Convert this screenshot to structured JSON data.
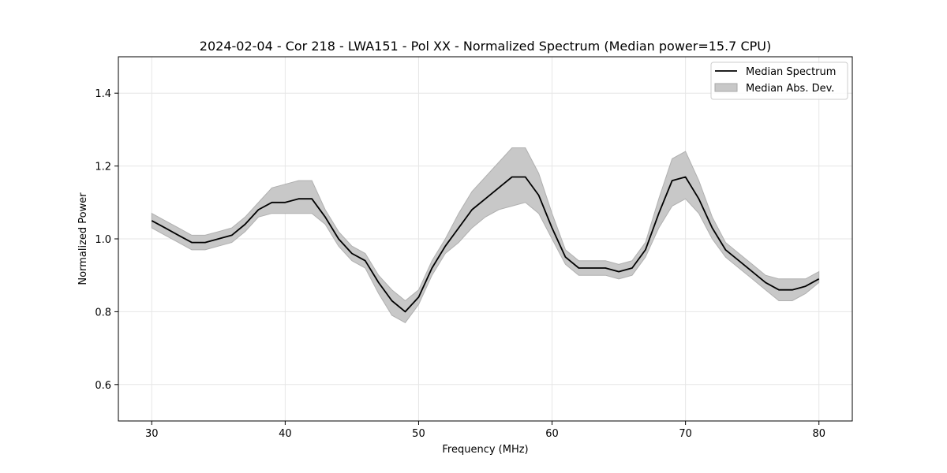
{
  "chart_data": {
    "type": "line",
    "title": "2024-02-04 - Cor 218 - LWA151 - Pol XX - Normalized Spectrum (Median power=15.7 CPU)",
    "xlabel": "Frequency (MHz)",
    "ylabel": "Normalized Power",
    "xlim": [
      27.5,
      82.5
    ],
    "ylim": [
      0.5,
      1.5
    ],
    "xticks": [
      30,
      40,
      50,
      60,
      70,
      80
    ],
    "yticks": [
      0.6,
      0.8,
      1.0,
      1.2,
      1.4
    ],
    "xtick_labels": [
      "30",
      "40",
      "50",
      "60",
      "70",
      "80"
    ],
    "ytick_labels": [
      "0.6",
      "0.8",
      "1.0",
      "1.2",
      "1.4"
    ],
    "grid": true,
    "legend_position": "top-right",
    "series": [
      {
        "name": "Median Spectrum",
        "kind": "line",
        "color": "#000000",
        "x": [
          30,
          31,
          32,
          33,
          34,
          35,
          36,
          37,
          38,
          39,
          40,
          41,
          42,
          43,
          44,
          45,
          46,
          47,
          48,
          49,
          50,
          51,
          52,
          53,
          54,
          55,
          56,
          57,
          58,
          59,
          60,
          61,
          62,
          63,
          64,
          65,
          66,
          67,
          68,
          69,
          70,
          71,
          72,
          73,
          74,
          75,
          76,
          77,
          78,
          79,
          80
        ],
        "y": [
          1.05,
          1.03,
          1.01,
          0.99,
          0.99,
          1.0,
          1.01,
          1.04,
          1.08,
          1.1,
          1.1,
          1.11,
          1.11,
          1.06,
          1.0,
          0.96,
          0.94,
          0.88,
          0.83,
          0.8,
          0.84,
          0.92,
          0.98,
          1.03,
          1.08,
          1.11,
          1.14,
          1.17,
          1.17,
          1.12,
          1.03,
          0.95,
          0.92,
          0.92,
          0.92,
          0.91,
          0.92,
          0.97,
          1.07,
          1.16,
          1.17,
          1.11,
          1.03,
          0.97,
          0.94,
          0.91,
          0.88,
          0.86,
          0.86,
          0.87,
          0.89
        ]
      },
      {
        "name": "Median Abs. Dev.",
        "kind": "band",
        "color": "#c8c8c8",
        "x": [
          30,
          31,
          32,
          33,
          34,
          35,
          36,
          37,
          38,
          39,
          40,
          41,
          42,
          43,
          44,
          45,
          46,
          47,
          48,
          49,
          50,
          51,
          52,
          53,
          54,
          55,
          56,
          57,
          58,
          59,
          60,
          61,
          62,
          63,
          64,
          65,
          66,
          67,
          68,
          69,
          70,
          71,
          72,
          73,
          74,
          75,
          76,
          77,
          78,
          79,
          80
        ],
        "lower": [
          1.03,
          1.01,
          0.99,
          0.97,
          0.97,
          0.98,
          0.99,
          1.02,
          1.06,
          1.07,
          1.07,
          1.07,
          1.07,
          1.04,
          0.98,
          0.94,
          0.92,
          0.85,
          0.79,
          0.77,
          0.82,
          0.9,
          0.96,
          0.99,
          1.03,
          1.06,
          1.08,
          1.09,
          1.1,
          1.07,
          1.0,
          0.93,
          0.9,
          0.9,
          0.9,
          0.89,
          0.9,
          0.95,
          1.03,
          1.09,
          1.11,
          1.07,
          1.0,
          0.95,
          0.92,
          0.89,
          0.86,
          0.83,
          0.83,
          0.85,
          0.88
        ],
        "upper": [
          1.07,
          1.05,
          1.03,
          1.01,
          1.01,
          1.02,
          1.03,
          1.06,
          1.1,
          1.14,
          1.15,
          1.16,
          1.16,
          1.08,
          1.02,
          0.98,
          0.96,
          0.9,
          0.86,
          0.83,
          0.86,
          0.94,
          1.0,
          1.07,
          1.13,
          1.17,
          1.21,
          1.25,
          1.25,
          1.18,
          1.07,
          0.97,
          0.94,
          0.94,
          0.94,
          0.93,
          0.94,
          0.99,
          1.11,
          1.22,
          1.24,
          1.16,
          1.06,
          0.99,
          0.96,
          0.93,
          0.9,
          0.89,
          0.89,
          0.89,
          0.91
        ]
      }
    ]
  },
  "legend": {
    "median_label": "Median Spectrum",
    "mad_label": "Median Abs. Dev."
  }
}
